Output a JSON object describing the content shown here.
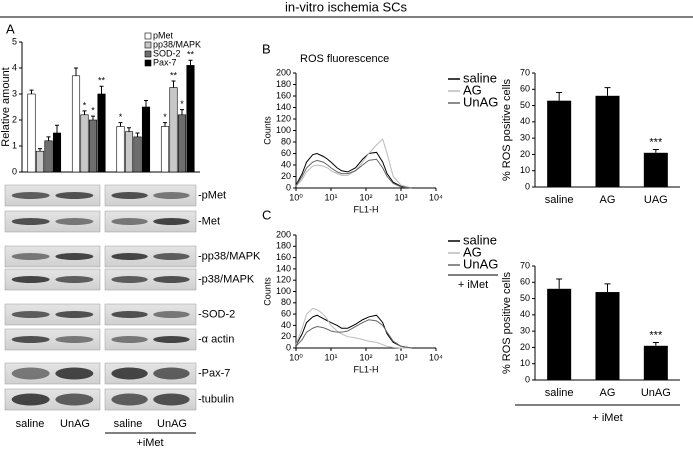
{
  "title": "in-vitro ischemia SCs",
  "panel_labels": [
    "A",
    "B",
    "C"
  ],
  "blots": {
    "labels": [
      "-pMet",
      "-Met",
      "-pp38/MAPK",
      "-p38/MAPK",
      "-SOD-2",
      "-α actin",
      "-Pax-7",
      "-tubulin"
    ],
    "lanes": [
      "saline",
      "UnAG",
      "saline",
      "UnAG"
    ],
    "treatment": "+iMet"
  },
  "chart_data": [
    {
      "type": "bar",
      "ylabel": "Relative amount",
      "categories": [
        null,
        null,
        null,
        null
      ],
      "ylim": [
        0,
        5
      ],
      "yticks": [
        0,
        1,
        2,
        3,
        4,
        5
      ],
      "legend": "upper right",
      "series": [
        {
          "name": "pMet",
          "color": "#ffffff",
          "values": [
            3.0,
            3.7,
            1.75,
            1.75
          ],
          "errors": [
            0.15,
            0.3,
            0.15,
            0.15
          ],
          "significance": [
            null,
            null,
            "*",
            "*"
          ]
        },
        {
          "name": "pp38/MAPK",
          "color": "#c8c8c8",
          "values": [
            0.8,
            2.2,
            1.55,
            3.25
          ],
          "errors": [
            0.1,
            0.15,
            0.15,
            0.25
          ],
          "significance": [
            null,
            "*",
            null,
            "**"
          ]
        },
        {
          "name": "SOD-2",
          "color": "#6e6e6e",
          "values": [
            1.2,
            2.0,
            1.35,
            2.2
          ],
          "errors": [
            0.15,
            0.15,
            0.15,
            0.2
          ],
          "significance": [
            null,
            "*",
            null,
            "*"
          ]
        },
        {
          "name": "Pax-7",
          "color": "#000000",
          "values": [
            1.5,
            3.0,
            2.5,
            4.1
          ],
          "errors": [
            0.3,
            0.3,
            0.25,
            0.2
          ],
          "significance": [
            null,
            "**",
            null,
            "**"
          ]
        }
      ]
    },
    {
      "type": "line",
      "title": "ROS fluorescence",
      "xlabel": "FL1-H",
      "ylabel": "Counts",
      "xscale": "log",
      "legend": "right",
      "xlim": [
        1,
        10000
      ],
      "xticks": [
        {
          "value": 1,
          "label": "10⁰"
        },
        {
          "value": 10,
          "label": "10¹"
        },
        {
          "value": 100,
          "label": "10²"
        },
        {
          "value": 1000,
          "label": "10³"
        },
        {
          "value": 10000,
          "label": "10⁴"
        }
      ],
      "ylim": [
        0,
        200
      ],
      "yticks": [
        0,
        20,
        40,
        60,
        80,
        100,
        120,
        140,
        160,
        180,
        200
      ],
      "x": [
        1,
        1.5,
        2,
        3,
        4,
        6,
        8,
        10,
        15,
        20,
        30,
        50,
        80,
        120,
        200,
        300,
        400,
        600,
        1000,
        2000
      ],
      "series": [
        {
          "name": "saline",
          "color": "#000000",
          "values": [
            5,
            25,
            45,
            58,
            60,
            55,
            50,
            45,
            35,
            30,
            28,
            35,
            50,
            60,
            62,
            45,
            25,
            10,
            3,
            0
          ]
        },
        {
          "name": "AG",
          "color": "#bbbbbb",
          "values": [
            3,
            15,
            28,
            38,
            40,
            38,
            35,
            30,
            25,
            22,
            22,
            30,
            45,
            60,
            75,
            85,
            60,
            20,
            5,
            0
          ]
        },
        {
          "name": "UnAG",
          "color": "#666666",
          "values": [
            4,
            20,
            35,
            45,
            48,
            45,
            40,
            35,
            28,
            25,
            25,
            30,
            40,
            48,
            50,
            35,
            20,
            8,
            2,
            0
          ]
        }
      ]
    },
    {
      "type": "bar",
      "ylabel": "% ROS positive cells",
      "categories": [
        "saline",
        "AG",
        "UAG"
      ],
      "color": "#000000",
      "ylim": [
        0,
        70
      ],
      "yticks": [
        0,
        10,
        20,
        30,
        40,
        50,
        60,
        70
      ],
      "values": [
        53,
        56,
        21
      ],
      "errors": [
        5,
        5,
        2
      ],
      "significance": [
        null,
        null,
        "***"
      ]
    },
    {
      "type": "line",
      "xlabel": "FL1-H",
      "ylabel": "Counts",
      "xscale": "log",
      "legend": "right",
      "treatment": "+ iMet",
      "xlim": [
        1,
        10000
      ],
      "xticks": [
        {
          "value": 1,
          "label": "10⁰"
        },
        {
          "value": 10,
          "label": "10¹"
        },
        {
          "value": 100,
          "label": "10²"
        },
        {
          "value": 1000,
          "label": "10³"
        },
        {
          "value": 10000,
          "label": "10⁴"
        }
      ],
      "ylim": [
        0,
        200
      ],
      "yticks": [
        0,
        20,
        40,
        60,
        80,
        100,
        120,
        140,
        160,
        180,
        200
      ],
      "x": [
        1,
        1.5,
        2,
        3,
        4,
        6,
        8,
        10,
        15,
        20,
        30,
        50,
        80,
        120,
        200,
        300,
        400,
        600,
        1000,
        2000
      ],
      "series": [
        {
          "name": "saline",
          "color": "#000000",
          "values": [
            5,
            25,
            45,
            55,
            58,
            52,
            48,
            45,
            40,
            35,
            35,
            42,
            50,
            55,
            58,
            45,
            25,
            10,
            3,
            0
          ]
        },
        {
          "name": "AG",
          "color": "#bbbbbb",
          "values": [
            6,
            35,
            60,
            70,
            68,
            60,
            50,
            40,
            30,
            25,
            20,
            18,
            15,
            12,
            10,
            6,
            3,
            1,
            0,
            0
          ]
        },
        {
          "name": "UnAG",
          "color": "#666666",
          "values": [
            3,
            15,
            28,
            35,
            38,
            36,
            33,
            30,
            28,
            28,
            30,
            38,
            45,
            50,
            48,
            40,
            28,
            12,
            3,
            0
          ]
        }
      ]
    },
    {
      "type": "bar",
      "ylabel": "% ROS positive cells",
      "categories": [
        "saline",
        "AG",
        "UnAG"
      ],
      "color": "#000000",
      "treatment": "+ iMet",
      "ylim": [
        0,
        70
      ],
      "yticks": [
        0,
        10,
        20,
        30,
        40,
        50,
        60,
        70
      ],
      "values": [
        56,
        54,
        21
      ],
      "errors": [
        6,
        5,
        2
      ],
      "significance": [
        null,
        null,
        "***"
      ]
    }
  ]
}
